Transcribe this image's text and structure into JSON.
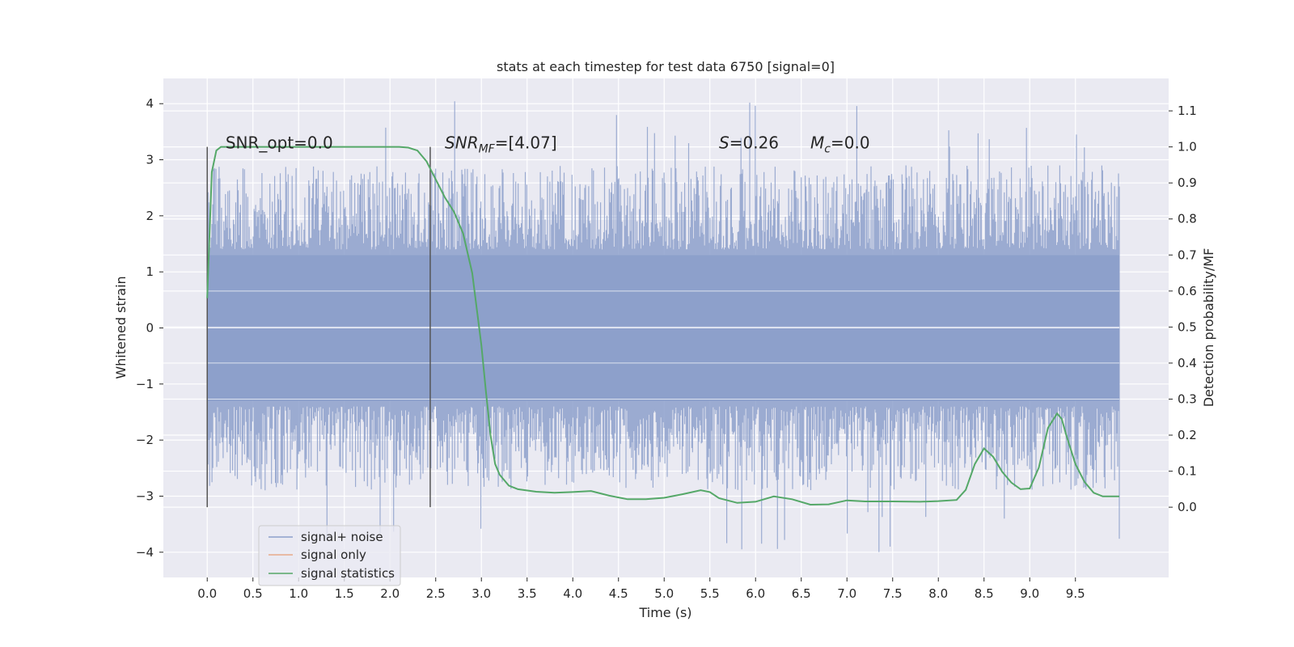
{
  "chart_data": {
    "type": "line",
    "title": "stats at each timestep for test data 6750 [signal=0]",
    "xlabel": "Time (s)",
    "ylabel": "Whitened strain",
    "y2label": "Detection probability/MF",
    "xlim": [
      -0.48,
      10.52
    ],
    "ylim": [
      -4.45,
      4.45
    ],
    "y2lim": [
      -0.195,
      1.19
    ],
    "x_ticks": [
      0.0,
      0.5,
      1.0,
      1.5,
      2.0,
      2.5,
      3.0,
      3.5,
      4.0,
      4.5,
      5.0,
      5.5,
      6.0,
      6.5,
      7.0,
      7.5,
      8.0,
      8.5,
      9.0,
      9.5
    ],
    "x_tick_labels": [
      "0.0",
      "0.5",
      "1.0",
      "1.5",
      "2.0",
      "2.5",
      "3.0",
      "3.5",
      "4.0",
      "4.5",
      "5.0",
      "5.5",
      "6.0",
      "6.5",
      "7.0",
      "7.5",
      "8.0",
      "8.5",
      "9.0",
      "9.5"
    ],
    "y_ticks": [
      4,
      3,
      2,
      1,
      0,
      -1,
      -2,
      -3,
      -4
    ],
    "y_tick_labels": [
      "4",
      "3",
      "2",
      "1",
      "0",
      "−1",
      "−2",
      "−3",
      "−4"
    ],
    "y2_ticks": [
      1.1,
      1.0,
      0.9,
      0.8,
      0.7,
      0.6,
      0.5,
      0.4,
      0.3,
      0.2,
      0.1,
      0.0
    ],
    "y2_tick_labels": [
      "1.1",
      "1.0",
      "0.9",
      "0.8",
      "0.7",
      "0.6",
      "0.5",
      "0.4",
      "0.3",
      "0.2",
      "0.1",
      "0.0"
    ],
    "grid": true,
    "legend_position": "lower-left",
    "series": [
      {
        "name": "signal+ noise",
        "axis": "left",
        "color": "#8da0cb",
        "x_range": [
          0.0,
          9.98
        ],
        "band": [
          -1.3,
          1.3
        ],
        "approx_extrema": {
          "max": 4.05,
          "min": -4.05
        }
      },
      {
        "name": "signal only",
        "axis": "left",
        "color": "#e8a98a",
        "values": []
      },
      {
        "name": "signal statistics",
        "axis": "right",
        "color": "#55a868",
        "x": [
          0.0,
          0.05,
          0.1,
          0.15,
          0.2,
          0.5,
          1.0,
          1.5,
          2.0,
          2.1,
          2.2,
          2.3,
          2.4,
          2.5,
          2.6,
          2.7,
          2.8,
          2.9,
          3.0,
          3.05,
          3.1,
          3.15,
          3.2,
          3.3,
          3.4,
          3.6,
          3.8,
          4.0,
          4.2,
          4.4,
          4.6,
          4.8,
          5.0,
          5.2,
          5.4,
          5.5,
          5.6,
          5.8,
          6.0,
          6.2,
          6.4,
          6.6,
          6.8,
          7.0,
          7.2,
          7.5,
          7.8,
          8.0,
          8.2,
          8.3,
          8.4,
          8.5,
          8.6,
          8.7,
          8.8,
          8.9,
          9.0,
          9.1,
          9.2,
          9.3,
          9.35,
          9.4,
          9.5,
          9.6,
          9.7,
          9.8,
          9.98
        ],
        "values": [
          0.58,
          0.93,
          0.99,
          1.0,
          1.0,
          1.0,
          1.0,
          1.0,
          1.0,
          1.0,
          0.998,
          0.99,
          0.96,
          0.91,
          0.86,
          0.82,
          0.76,
          0.65,
          0.45,
          0.32,
          0.2,
          0.12,
          0.09,
          0.06,
          0.05,
          0.043,
          0.04,
          0.042,
          0.045,
          0.032,
          0.022,
          0.022,
          0.026,
          0.036,
          0.047,
          0.042,
          0.025,
          0.012,
          0.015,
          0.03,
          0.022,
          0.007,
          0.008,
          0.019,
          0.016,
          0.016,
          0.015,
          0.017,
          0.02,
          0.048,
          0.12,
          0.163,
          0.14,
          0.098,
          0.068,
          0.05,
          0.052,
          0.11,
          0.22,
          0.26,
          0.245,
          0.2,
          0.12,
          0.07,
          0.04,
          0.03,
          0.03
        ]
      }
    ],
    "vlines": [
      0.0,
      2.44
    ],
    "annotations": [
      {
        "text": "SNR_opt=0.0",
        "x": 0.2,
        "y": 3.2
      },
      {
        "text": "SNR",
        "sub": "MF",
        "rest": "=[4.07]",
        "x": 2.6,
        "y": 3.2
      },
      {
        "text": "S",
        "rest": "=0.26",
        "x": 5.6,
        "y": 3.2
      },
      {
        "text": "M",
        "sub": "c",
        "rest": "=0.0",
        "x": 6.6,
        "y": 3.2
      }
    ]
  }
}
